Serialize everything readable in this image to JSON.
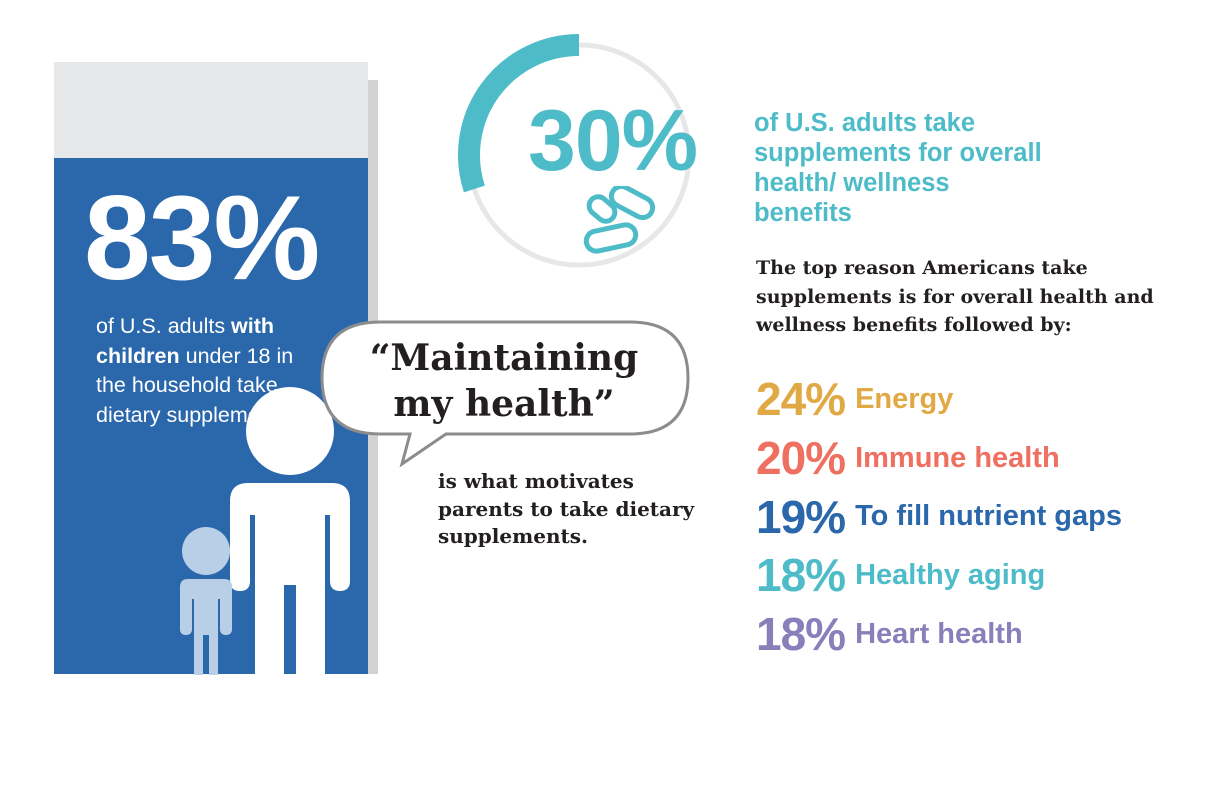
{
  "left_panel": {
    "big_stat": "83%",
    "desc_1": "of U.S. adults ",
    "desc_bold_1": "with",
    "desc_bold_2": "children",
    "desc_2": " under 18 in the household take dietary supplements"
  },
  "quote": {
    "line1": "“Maintaining",
    "line2": "my health”",
    "caption": "is what motivates parents to take dietary supplements."
  },
  "overall": {
    "stat": "30%",
    "stat_value": 30,
    "desc": "of U.S. adults take supplements for overall health/ wellness benefits"
  },
  "reason_text": "The top reason Americans take supplements is for overall health and wellness benefits followed by:",
  "reasons": [
    {
      "pct": "24%",
      "label": "Energy",
      "color": "#e1a944"
    },
    {
      "pct": "20%",
      "label": "Immune health",
      "color": "#ef6f61"
    },
    {
      "pct": "19%",
      "label": "To fill nutrient gaps",
      "color": "#2b67ab"
    },
    {
      "pct": "18%",
      "label": "Healthy aging",
      "color": "#4ebcc8"
    },
    {
      "pct": "18%",
      "label": "Heart health",
      "color": "#8a7fba"
    }
  ],
  "colors": {
    "panel_blue": "#2b67ab",
    "teal": "#4ebcc8",
    "child_figure": "#b9cfe7",
    "ring_track": "#e6e7e8"
  }
}
